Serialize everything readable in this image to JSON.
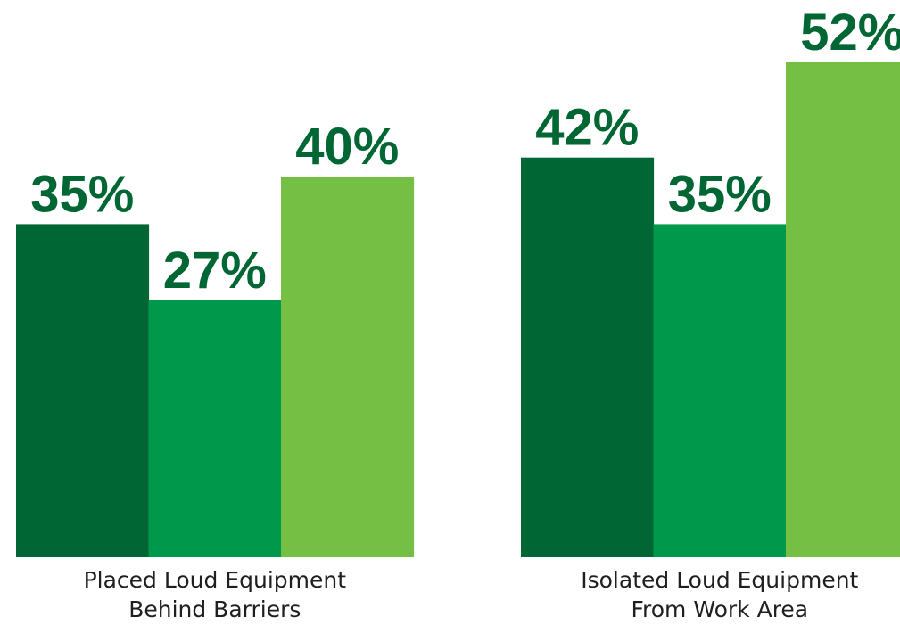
{
  "chart_data": {
    "type": "bar",
    "categories": [
      [
        "Placed Loud Equipment",
        "Behind Barriers"
      ],
      [
        "Isolated Loud Equipment",
        "From Work Area"
      ]
    ],
    "series": [
      {
        "color": "#006633",
        "values": [
          35,
          42
        ]
      },
      {
        "color": "#00994c",
        "values": [
          27,
          35
        ]
      },
      {
        "color": "#75c044",
        "values": [
          40,
          52
        ]
      }
    ],
    "value_suffix": "%",
    "value_label_color": "#006633",
    "ylim": [
      0,
      52
    ],
    "grid": false,
    "legend": "none",
    "title": "",
    "xlabel": "",
    "ylabel": ""
  }
}
